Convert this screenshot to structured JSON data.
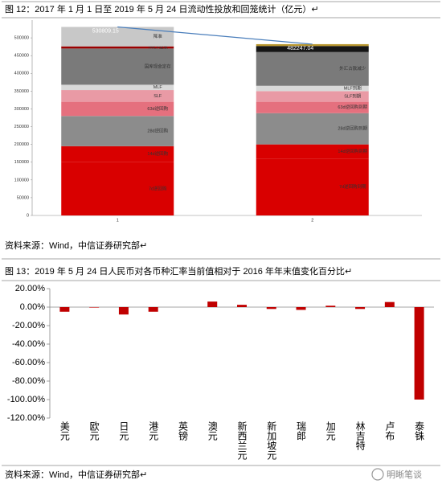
{
  "chart_data": [
    {
      "type": "stacked_bar",
      "title": "图 12：2017 年 1 月 1 日至 2019 年 5 月 24 日流动性投放和回笼统计（亿元）↵",
      "categories": [
        "1",
        "2"
      ],
      "series": [
        {
          "color": "#d90000",
          "values": [
            150000,
            160000
          ],
          "labels": [
            "7d逆回购",
            "7d逆回购到期"
          ]
        },
        {
          "color": "#d90000",
          "values": [
            45000,
            40000
          ],
          "labels": [
            "14d逆回购",
            "14d逆回购到期"
          ]
        },
        {
          "color": "#8c8c8c",
          "values": [
            85000,
            88000
          ],
          "labels": [
            "28d逆回购",
            "28d逆回购到期"
          ]
        },
        {
          "color": "#e5707e",
          "values": [
            40000,
            32000
          ],
          "labels": [
            "63d逆回购",
            "63d逆回购到期"
          ]
        },
        {
          "color": "#e99aa5",
          "values": [
            33000,
            30000
          ],
          "labels": [
            "SLF",
            "SLF到期"
          ]
        },
        {
          "color": "#d9d9d9",
          "values": [
            15000,
            15000
          ],
          "labels": [
            "MLF",
            "MLF到期"
          ]
        },
        {
          "color": "#7a7a7a",
          "values": [
            102000,
            95000
          ],
          "labels": [
            "国库现金定存",
            "外汇占款减少"
          ]
        },
        {
          "color": [
            "#9b0000",
            "#151515"
          ],
          "values": [
            6000,
            17000
          ],
          "labels": [
            "TMLF投放",
            null
          ]
        },
        {
          "color": [
            "#c8c8c8",
            "#b8962e"
          ],
          "values": [
            54809.15,
            5247.04
          ],
          "labels": [
            "降准",
            null
          ]
        }
      ],
      "total_line": {
        "color": "#4a7ebb",
        "values": [
          530809.15,
          482247.04
        ]
      },
      "ylim": [
        0,
        550000
      ],
      "yticks": [
        0,
        50000,
        100000,
        150000,
        200000,
        250000,
        300000,
        350000,
        400000,
        450000,
        500000
      ],
      "source": "资料来源：Wind，中信证券研究部↵"
    },
    {
      "type": "bar",
      "title": "图 13：2019 年 5 月 24 日人民币对各币种汇率当前值相对于 2016 年年末值变化百分比↵",
      "categories": [
        "美元",
        "欧元",
        "日元",
        "港元",
        "英镑",
        "澳元",
        "新西兰元",
        "新加坡元",
        "瑞郎",
        "加元",
        "林吉特",
        "卢布",
        "泰铢"
      ],
      "values": [
        -5,
        -0.5,
        -8,
        -5,
        0,
        6,
        2.5,
        -2,
        -3,
        1.5,
        -2,
        5.5,
        -100
      ],
      "color": "#c00000",
      "ylim": [
        -120,
        20
      ],
      "yticks": [
        {
          "value": 20,
          "label": "20.00%"
        },
        {
          "value": 0,
          "label": "0.00%"
        },
        {
          "value": -20,
          "label": "-20.00%"
        },
        {
          "value": -40,
          "label": "-40.00%"
        },
        {
          "value": -60,
          "label": "-60.00%"
        },
        {
          "value": -80,
          "label": "-80.00%"
        },
        {
          "value": -100,
          "label": "-100.00%"
        },
        {
          "value": -120,
          "label": "-120.00%"
        }
      ],
      "source": "资料来源：Wind，中信证券研究部↵"
    }
  ],
  "watermark": "明晰笔谈"
}
